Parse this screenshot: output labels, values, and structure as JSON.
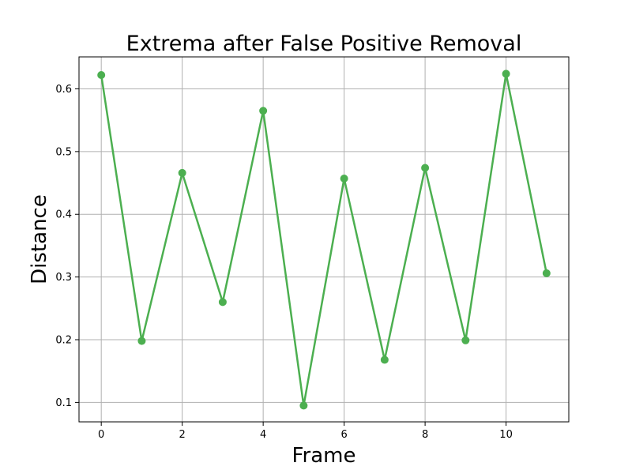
{
  "chart_data": {
    "type": "line",
    "title": "Extrema after False Positive Removal",
    "xlabel": "Frame",
    "ylabel": "Distance",
    "xlim": [
      -0.55,
      11.55
    ],
    "ylim": [
      0.069,
      0.651
    ],
    "xticks": [
      0,
      2,
      4,
      6,
      8,
      10
    ],
    "yticks": [
      0.1,
      0.2,
      0.3,
      0.4,
      0.5,
      0.6
    ],
    "grid": true,
    "series": [
      {
        "color": "#4caf50",
        "marker": "circle",
        "x": [
          0,
          1,
          2,
          3,
          4,
          5,
          6,
          7,
          8,
          9,
          10,
          11
        ],
        "y": [
          0.622,
          0.198,
          0.466,
          0.26,
          0.565,
          0.095,
          0.457,
          0.168,
          0.474,
          0.199,
          0.624,
          0.306
        ]
      }
    ]
  }
}
